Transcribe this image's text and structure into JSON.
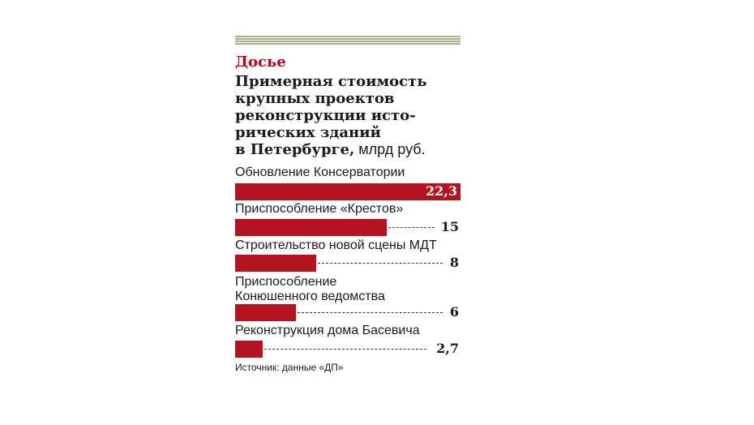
{
  "kicker": "Досье",
  "title_lines": [
    "Примерная стоимость",
    "крупных проектов",
    "реконструкции исто-",
    "рических зданий",
    "в Петербурге,"
  ],
  "unit": " млрд руб.",
  "source": "Источник: данные «ДП»",
  "colors": {
    "bar": "#b3121f",
    "kicker": "#c0001a",
    "rule": "#a8b08a"
  },
  "chart_data": {
    "type": "bar",
    "title": "Примерная стоимость крупных проектов реконструкции исторических зданий в Петербурге, млрд руб.",
    "categories": [
      "Обновление Консерватории",
      "Приспособление «Крестов»",
      "Строительство новой сцены МДТ",
      "Приспособление Конюшенного ведомства",
      "Реконструкция дома Басевича"
    ],
    "category_lines": [
      [
        "Обновление Консерватории"
      ],
      [
        "Приспособление «Крестов»"
      ],
      [
        "Строительство новой сцены МДТ"
      ],
      [
        "Приспособление",
        "Конюшенного ведомства"
      ],
      [
        "Реконструкция дома Басевича"
      ]
    ],
    "values": [
      22.3,
      15,
      8,
      6,
      2.7
    ],
    "value_labels": [
      "22,3",
      "15",
      "8",
      "6",
      "2,7"
    ],
    "xlim": [
      0,
      22.3
    ]
  }
}
